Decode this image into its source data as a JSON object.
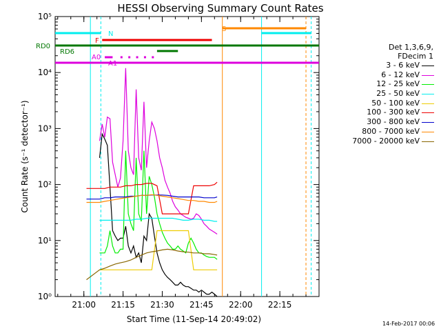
{
  "chart_data": {
    "type": "line",
    "title": "HESSI Observing Summary Count Rates",
    "xlabel": "Start Time (11-Sep-14 20:49:02)",
    "ylabel": "Count Rate (s⁻¹ detector⁻¹)",
    "x_ticks": [
      "21:00",
      "21:15",
      "21:30",
      "21:45",
      "22:00",
      "22:15"
    ],
    "y_ticks": [
      "10⁰",
      "10¹",
      "10²",
      "10³",
      "10⁴",
      "10⁵"
    ],
    "y_scale": "log",
    "ylim": [
      1,
      100000
    ],
    "xlim_minutes_from_start": [
      0,
      101
    ],
    "legend": {
      "header": [
        "Det 1,3,6,9,",
        "FDecim 1"
      ],
      "entries": [
        {
          "label": "3 - 6 keV",
          "color": "#000000"
        },
        {
          "label": "6 - 12 keV",
          "color": "#dd00dd"
        },
        {
          "label": "12 - 25 keV",
          "color": "#00ee00"
        },
        {
          "label": "25 - 50 keV",
          "color": "#00eeee"
        },
        {
          "label": "50 - 100 keV",
          "color": "#eecc00"
        },
        {
          "label": "100 - 300 keV",
          "color": "#ee0000"
        },
        {
          "label": "300 - 800 keV",
          "color": "#0000cc"
        },
        {
          "label": "800 - 7000 keV",
          "color": "#ff8800"
        },
        {
          "label": "7000 - 20000 keV",
          "color": "#886600"
        }
      ]
    },
    "series": [
      {
        "name": "3 - 6 keV",
        "color": "#000000",
        "x": [
          17,
          18,
          19,
          20,
          21,
          22,
          23,
          24,
          25,
          26,
          27,
          28,
          29,
          30,
          31,
          32,
          33,
          34,
          35,
          36,
          37,
          38,
          39,
          40,
          41,
          42,
          43,
          44,
          45,
          46,
          47,
          48,
          49,
          50,
          51,
          52,
          53,
          54,
          55,
          56,
          57,
          58,
          59,
          60,
          61,
          62
        ],
        "y": [
          300,
          800,
          650,
          500,
          90,
          15,
          12,
          10,
          11,
          11,
          18,
          8,
          6,
          8,
          5,
          6,
          4,
          12,
          10,
          30,
          25,
          12,
          6,
          4,
          3,
          2.5,
          2.2,
          2,
          1.8,
          1.6,
          1.6,
          1.8,
          1.6,
          1.5,
          1.5,
          1.4,
          1.3,
          1.3,
          1.2,
          1.3,
          1.2,
          1.1,
          1.1,
          1.2,
          1.1,
          1
        ]
      },
      {
        "name": "6 - 12 keV",
        "color": "#dd00dd",
        "x": [
          17,
          18,
          19,
          20,
          21,
          22,
          23,
          24,
          25,
          26,
          27,
          28,
          29,
          30,
          31,
          32,
          33,
          34,
          35,
          36,
          37,
          38,
          39,
          40,
          41,
          42,
          43,
          44,
          45,
          46,
          47,
          48,
          49,
          50,
          51,
          52,
          53,
          54,
          55,
          56,
          57,
          58,
          59,
          60,
          61,
          62
        ],
        "y": [
          600,
          1200,
          700,
          1600,
          1500,
          250,
          150,
          90,
          130,
          600,
          12000,
          400,
          200,
          150,
          5000,
          300,
          180,
          3000,
          200,
          600,
          1300,
          1000,
          600,
          300,
          200,
          120,
          90,
          70,
          50,
          40,
          35,
          30,
          28,
          26,
          25,
          24,
          25,
          30,
          28,
          24,
          20,
          18,
          16,
          15,
          14,
          13
        ]
      },
      {
        "name": "12 - 25 keV",
        "color": "#00ee00",
        "x": [
          17,
          18,
          19,
          20,
          21,
          22,
          23,
          24,
          25,
          26,
          27,
          28,
          29,
          30,
          31,
          32,
          33,
          34,
          35,
          36,
          37,
          38,
          39,
          40,
          41,
          42,
          43,
          44,
          45,
          46,
          47,
          48,
          49,
          50,
          51,
          52,
          53,
          54,
          55,
          56,
          57,
          58,
          59,
          60,
          61,
          62
        ],
        "y": [
          6,
          6,
          6,
          8,
          15,
          8,
          6,
          6,
          7,
          7,
          400,
          30,
          20,
          15,
          300,
          30,
          22,
          400,
          30,
          140,
          100,
          60,
          30,
          20,
          14,
          11,
          9,
          8,
          7,
          7,
          8,
          7,
          6.5,
          6,
          9,
          11,
          9,
          7,
          6,
          6,
          5.5,
          5.2,
          5,
          5,
          5,
          4.6
        ]
      },
      {
        "name": "25 - 50 keV",
        "color": "#00eeee",
        "x": [
          17,
          19,
          21,
          23,
          25,
          27,
          29,
          31,
          33,
          35,
          37,
          39,
          41,
          43,
          45,
          47,
          49,
          51,
          53,
          55,
          57,
          59,
          61,
          62
        ],
        "y": [
          23,
          23,
          23,
          23,
          23,
          23,
          23,
          24,
          24,
          25,
          25,
          25,
          25,
          25,
          25,
          24,
          23,
          23,
          24,
          24,
          23,
          23,
          22,
          22
        ]
      },
      {
        "name": "50 - 100 keV",
        "color": "#eecc00",
        "x": [
          17,
          19,
          21,
          23,
          25,
          27,
          29,
          31,
          33,
          35,
          37,
          39,
          41,
          43,
          45,
          47,
          49,
          51,
          53,
          55,
          57,
          59,
          61,
          62
        ],
        "y": [
          3,
          3,
          3,
          3,
          3,
          3,
          3,
          3,
          3,
          3,
          3,
          15,
          15,
          15,
          15,
          15,
          15,
          15,
          3,
          3,
          3,
          3,
          3,
          3
        ]
      },
      {
        "name": "100 - 300 keV",
        "color": "#ee0000",
        "x": [
          12,
          17,
          19,
          21,
          23,
          25,
          27,
          29,
          31,
          33,
          35,
          37,
          39,
          41,
          43,
          45,
          47,
          49,
          51,
          53,
          55,
          57,
          59,
          61,
          62
        ],
        "y": [
          85,
          85,
          85,
          90,
          90,
          90,
          95,
          95,
          100,
          100,
          105,
          105,
          95,
          30,
          30,
          30,
          30,
          30,
          30,
          95,
          95,
          95,
          95,
          100,
          110
        ]
      },
      {
        "name": "300 - 800 keV",
        "color": "#0000cc",
        "x": [
          12,
          17,
          19,
          21,
          23,
          25,
          27,
          29,
          31,
          33,
          35,
          37,
          39,
          41,
          43,
          45,
          47,
          49,
          51,
          53,
          55,
          57,
          59,
          61,
          62
        ],
        "y": [
          55,
          55,
          58,
          58,
          60,
          60,
          60,
          62,
          62,
          64,
          64,
          65,
          65,
          65,
          64,
          62,
          60,
          60,
          60,
          60,
          60,
          58,
          58,
          58,
          60
        ]
      },
      {
        "name": "800 - 7000 keV",
        "color": "#ff8800",
        "x": [
          12,
          17,
          19,
          21,
          23,
          25,
          27,
          29,
          31,
          33,
          35,
          37,
          39,
          41,
          43,
          45,
          47,
          49,
          51,
          53,
          55,
          57,
          59,
          61,
          62
        ],
        "y": [
          48,
          48,
          50,
          52,
          54,
          56,
          58,
          60,
          62,
          64,
          64,
          66,
          64,
          62,
          60,
          58,
          56,
          54,
          52,
          52,
          50,
          50,
          48,
          48,
          50
        ]
      },
      {
        "name": "7000 - 20000 keV",
        "color": "#886600",
        "x": [
          12,
          17,
          19,
          21,
          23,
          25,
          27,
          29,
          31,
          33,
          35,
          37,
          39,
          41,
          43,
          45,
          47,
          49,
          51,
          53,
          55,
          57,
          59,
          61,
          62
        ],
        "y": [
          2,
          3,
          3.2,
          3.5,
          3.8,
          4,
          4.2,
          4.5,
          5,
          5.5,
          6,
          6.3,
          6.5,
          6.8,
          7,
          6.8,
          6.5,
          6.3,
          6.2,
          6,
          6,
          5.8,
          5.8,
          5.6,
          5.5
        ]
      }
    ],
    "flag_labels": [
      {
        "text": "N",
        "color": "#00eeee"
      },
      {
        "text": "F",
        "color": "#ee0000"
      },
      {
        "text": "S",
        "color": "#ff8800"
      },
      {
        "text": "RD0",
        "color": "#007700"
      },
      {
        "text": "RD6",
        "color": "#007700"
      },
      {
        "text": "A0",
        "color": "#dd00dd"
      },
      {
        "text": "A1",
        "color": "#dd00dd"
      }
    ]
  },
  "timestamp": "14-Feb-2017 00:06"
}
